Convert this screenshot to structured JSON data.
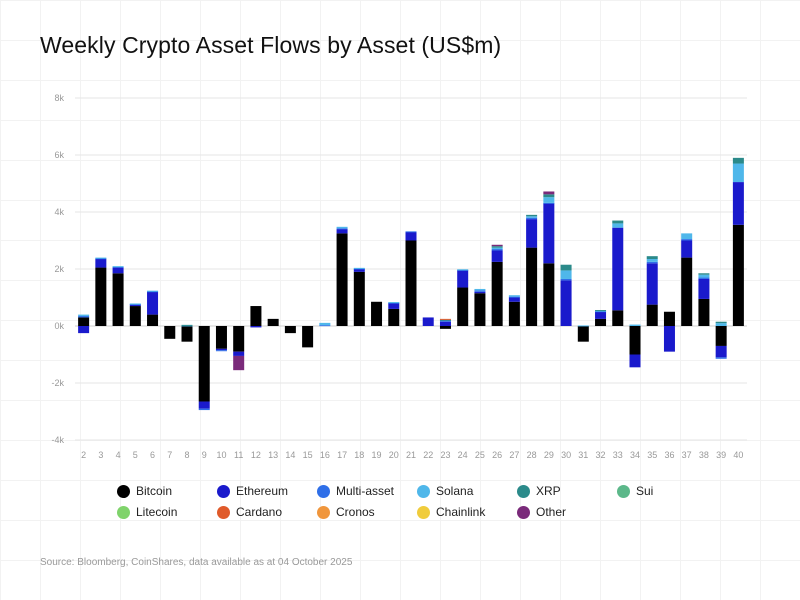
{
  "chart_data": {
    "type": "bar",
    "stacked": true,
    "title": "Weekly Crypto Asset Flows by Asset (US$m)",
    "source": "Source: Bloomberg, CoinShares, data available as at 04 October 2025",
    "xlabel": "",
    "ylabel": "",
    "ylim": [
      -4000,
      8000
    ],
    "yticks": [
      -4000,
      -2000,
      0,
      2000,
      4000,
      6000,
      8000
    ],
    "ytick_labels": [
      "-4k",
      "-2k",
      "0k",
      "2k",
      "4k",
      "6k",
      "8k"
    ],
    "legend_position": "bottom",
    "categories": [
      "2",
      "3",
      "4",
      "5",
      "6",
      "7",
      "8",
      "9",
      "10",
      "11",
      "12",
      "13",
      "14",
      "15",
      "16",
      "17",
      "18",
      "19",
      "20",
      "21",
      "22",
      "23",
      "24",
      "25",
      "26",
      "27",
      "28",
      "29",
      "30",
      "31",
      "32",
      "33",
      "34",
      "35",
      "36",
      "37",
      "38",
      "39",
      "40"
    ],
    "series": [
      {
        "name": "Bitcoin",
        "color": "#000000",
        "values": [
          300,
          2050,
          1850,
          700,
          400,
          -450,
          -550,
          -2650,
          -800,
          -900,
          700,
          250,
          -250,
          -750,
          0,
          3250,
          1900,
          850,
          600,
          3000,
          0,
          -100,
          1350,
          1150,
          2250,
          850,
          2750,
          2200,
          0,
          -550,
          250,
          550,
          -1000,
          750,
          500,
          2400,
          950,
          -700,
          3550
        ]
      },
      {
        "name": "Ethereum",
        "color": "#1a1acc",
        "values": [
          -250,
          300,
          200,
          50,
          800,
          0,
          0,
          -250,
          -50,
          -150,
          -50,
          0,
          0,
          0,
          0,
          150,
          100,
          0,
          200,
          300,
          300,
          150,
          600,
          50,
          400,
          150,
          1000,
          2100,
          1600,
          0,
          250,
          2900,
          -450,
          1450,
          -900,
          600,
          700,
          -400,
          1500
        ]
      },
      {
        "name": "Multi-asset",
        "color": "#2f6fe8",
        "values": [
          50,
          30,
          30,
          20,
          20,
          0,
          0,
          -50,
          -20,
          0,
          0,
          0,
          0,
          0,
          30,
          30,
          20,
          0,
          20,
          20,
          0,
          50,
          20,
          50,
          50,
          30,
          50,
          20,
          50,
          0,
          20,
          0,
          0,
          50,
          0,
          50,
          50,
          -50,
          0
        ]
      },
      {
        "name": "Solana",
        "color": "#4fb7ea",
        "values": [
          50,
          20,
          20,
          20,
          20,
          0,
          20,
          0,
          0,
          0,
          0,
          0,
          0,
          0,
          80,
          50,
          20,
          0,
          20,
          0,
          0,
          0,
          20,
          50,
          50,
          50,
          50,
          200,
          300,
          20,
          20,
          150,
          50,
          100,
          0,
          200,
          100,
          100,
          650
        ]
      },
      {
        "name": "XRP",
        "color": "#2b8a8a",
        "values": [
          0,
          0,
          0,
          0,
          0,
          0,
          20,
          0,
          0,
          0,
          0,
          0,
          0,
          0,
          0,
          0,
          0,
          0,
          0,
          0,
          0,
          20,
          0,
          0,
          50,
          0,
          50,
          100,
          200,
          0,
          20,
          100,
          0,
          100,
          0,
          0,
          50,
          50,
          200
        ]
      },
      {
        "name": "Sui",
        "color": "#5cb88a",
        "values": [
          0,
          0,
          0,
          0,
          0,
          0,
          0,
          0,
          0,
          0,
          0,
          0,
          0,
          0,
          0,
          0,
          0,
          0,
          0,
          0,
          0,
          0,
          0,
          0,
          0,
          0,
          0,
          0,
          0,
          0,
          0,
          0,
          0,
          0,
          0,
          0,
          0,
          0,
          0
        ]
      },
      {
        "name": "Litecoin",
        "color": "#7fd36b",
        "values": [
          0,
          0,
          0,
          0,
          0,
          0,
          0,
          0,
          0,
          0,
          0,
          0,
          0,
          0,
          0,
          0,
          0,
          0,
          0,
          0,
          0,
          0,
          0,
          0,
          0,
          0,
          0,
          0,
          0,
          0,
          0,
          0,
          0,
          0,
          0,
          0,
          0,
          0,
          0
        ]
      },
      {
        "name": "Cardano",
        "color": "#e05a2a",
        "values": [
          0,
          0,
          0,
          0,
          0,
          0,
          0,
          0,
          0,
          0,
          0,
          0,
          0,
          0,
          0,
          0,
          0,
          0,
          0,
          0,
          0,
          30,
          0,
          0,
          0,
          0,
          0,
          0,
          0,
          0,
          0,
          0,
          0,
          0,
          0,
          0,
          0,
          0,
          0
        ]
      },
      {
        "name": "Cronos",
        "color": "#f0963c",
        "values": [
          0,
          0,
          0,
          0,
          0,
          0,
          0,
          0,
          0,
          0,
          0,
          0,
          0,
          0,
          0,
          0,
          0,
          0,
          0,
          0,
          0,
          0,
          0,
          0,
          0,
          0,
          0,
          0,
          0,
          0,
          0,
          0,
          0,
          0,
          0,
          0,
          0,
          0,
          0
        ]
      },
      {
        "name": "Chainlink",
        "color": "#f0cc3c",
        "values": [
          0,
          0,
          0,
          0,
          0,
          0,
          0,
          0,
          0,
          0,
          0,
          0,
          0,
          0,
          0,
          0,
          0,
          0,
          0,
          0,
          0,
          0,
          0,
          0,
          0,
          0,
          0,
          0,
          0,
          0,
          0,
          0,
          0,
          0,
          0,
          0,
          0,
          0,
          0
        ]
      },
      {
        "name": "Other",
        "color": "#7a2a7a",
        "values": [
          0,
          0,
          0,
          0,
          0,
          0,
          0,
          0,
          0,
          -500,
          0,
          0,
          0,
          0,
          0,
          0,
          0,
          0,
          0,
          0,
          0,
          0,
          0,
          0,
          50,
          0,
          0,
          100,
          0,
          0,
          0,
          0,
          0,
          0,
          0,
          0,
          0,
          0,
          0
        ]
      }
    ]
  }
}
